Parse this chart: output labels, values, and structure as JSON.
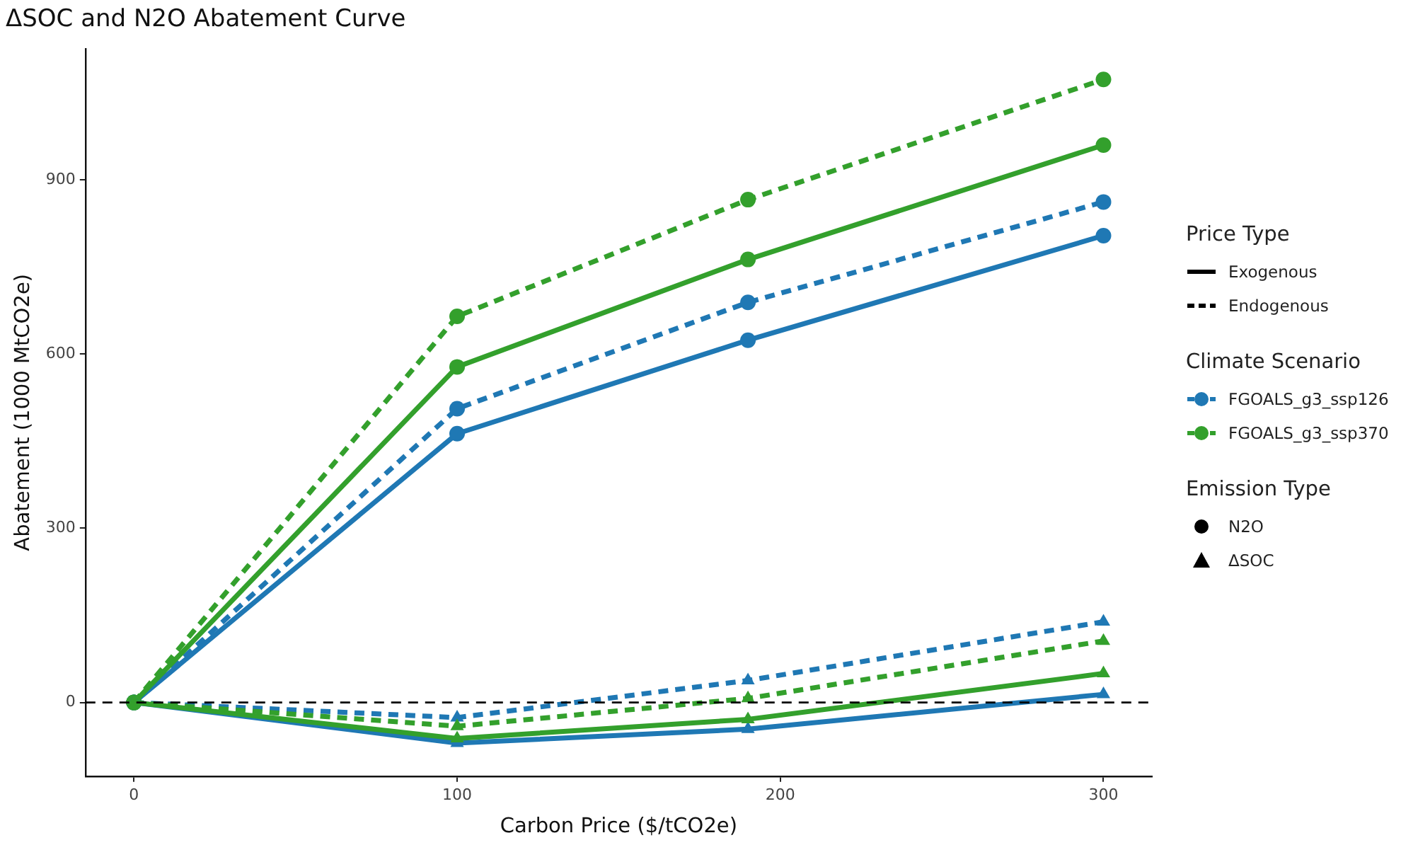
{
  "chart_data": {
    "type": "line",
    "title": "ΔSOC and N2O Abatement Curve",
    "xlabel": "Carbon Price ($/tCO2e)",
    "ylabel": "Abatement (1000 MtCO2e)",
    "x": [
      0,
      100,
      190,
      300
    ],
    "xlim": [
      -15,
      315
    ],
    "xticks": [
      0,
      100,
      200,
      300
    ],
    "ylim": [
      -127,
      1126
    ],
    "yticks": [
      0,
      300,
      600,
      900
    ],
    "grid": false,
    "ref_lines": [
      {
        "axis": "y",
        "value": 0,
        "color": "#000000",
        "line_style": "dashed"
      }
    ],
    "annotations": [
      "Price Type",
      "Exogenous",
      "Endogenous",
      "Climate Scenario",
      "FGOALS_g3_ssp126",
      "FGOALS_g3_ssp370",
      "Emission Type",
      "N2O",
      "ΔSOC"
    ],
    "series": [
      {
        "color": "#1f78b4",
        "line_style": "solid",
        "marker": "circle",
        "values": [
          0,
          463,
          624,
          804
        ]
      },
      {
        "color": "#1f78b4",
        "line_style": "dashed",
        "marker": "circle",
        "values": [
          0,
          506,
          689,
          862
        ]
      },
      {
        "color": "#33a02c",
        "line_style": "solid",
        "marker": "circle",
        "values": [
          0,
          578,
          763,
          960
        ]
      },
      {
        "color": "#33a02c",
        "line_style": "dashed",
        "marker": "circle",
        "values": [
          0,
          665,
          866,
          1073
        ]
      },
      {
        "color": "#1f78b4",
        "line_style": "solid",
        "marker": "triangle",
        "values": [
          0,
          -70,
          -46,
          14
        ]
      },
      {
        "color": "#1f78b4",
        "line_style": "dashed",
        "marker": "triangle",
        "values": [
          0,
          -26,
          38,
          139
        ]
      },
      {
        "color": "#33a02c",
        "line_style": "solid",
        "marker": "triangle",
        "values": [
          0,
          -62,
          -29,
          50
        ]
      },
      {
        "color": "#33a02c",
        "line_style": "dashed",
        "marker": "triangle",
        "values": [
          0,
          -41,
          7,
          106
        ]
      }
    ]
  }
}
